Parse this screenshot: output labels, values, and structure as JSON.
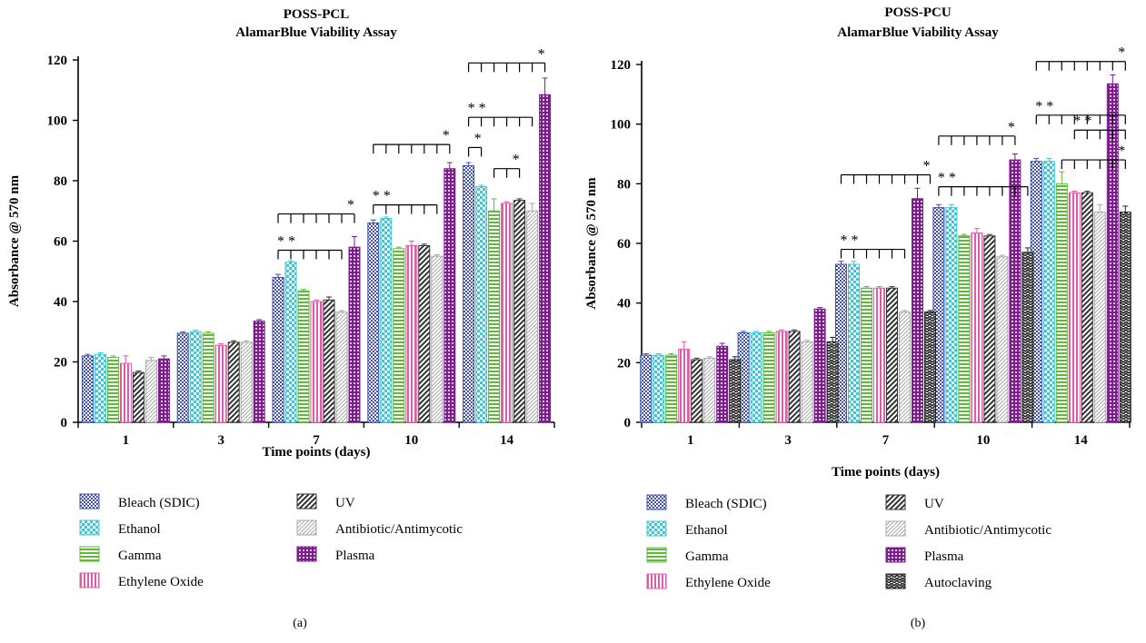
{
  "colors": {
    "Bleach (SDIC)": "#3f51a8",
    "Ethanol": "#3fc6d6",
    "Gamma": "#5fb83a",
    "Ethylene Oxide": "#e05aa8",
    "UV": "#333333",
    "Antibiotic/Antimycotic": "#a8a8a8",
    "Plasma": "#7a1e8c",
    "Autoclaving": "#222222"
  },
  "patterns": {
    "Bleach (SDIC)": "checker-small",
    "Ethanol": "checker",
    "Gamma": "hstripe",
    "Ethylene Oxide": "vstripe",
    "UV": "diag",
    "Antibiotic/Antimycotic": "diag-fine",
    "Plasma": "grid",
    "Autoclaving": "zigzag"
  },
  "chart_data": [
    {
      "id": "a",
      "type": "bar",
      "caption": "(a)",
      "title": [
        "POSS-PCL",
        "AlamarBlue Viability Assay"
      ],
      "xlabel": "Time points (days)",
      "ylabel": "Absorbance @ 570 nm",
      "ylim": [
        0,
        120
      ],
      "yticks": [
        0,
        20,
        40,
        60,
        80,
        100,
        120
      ],
      "categories": [
        "1",
        "3",
        "7",
        "10",
        "14"
      ],
      "series": [
        {
          "name": "Bleach (SDIC)",
          "values": [
            22,
            29.5,
            48,
            66,
            85
          ],
          "errors": [
            0.5,
            0.5,
            1,
            1,
            1
          ]
        },
        {
          "name": "Ethanol",
          "values": [
            22.5,
            30,
            53,
            67.5,
            78
          ],
          "errors": [
            0.5,
            0.5,
            0.5,
            0.5,
            0.5
          ]
        },
        {
          "name": "Gamma",
          "values": [
            21.5,
            29.5,
            43.5,
            57.5,
            70
          ],
          "errors": [
            0.5,
            0.5,
            0.5,
            0.5,
            4
          ]
        },
        {
          "name": "Ethylene Oxide",
          "values": [
            19.5,
            25.5,
            40,
            58.5,
            72.5
          ],
          "errors": [
            2.5,
            0.5,
            0.5,
            1.5,
            0.5
          ]
        },
        {
          "name": "UV",
          "values": [
            16.5,
            26.5,
            40.5,
            58.5,
            73.5
          ],
          "errors": [
            0.5,
            0.5,
            1,
            0.5,
            0.5
          ]
        },
        {
          "name": "Antibiotic/Antimycotic",
          "values": [
            20.5,
            26.5,
            36.5,
            55,
            70
          ],
          "errors": [
            1,
            0.5,
            0.5,
            0.5,
            2.5
          ]
        },
        {
          "name": "Plasma",
          "values": [
            21,
            33.5,
            58,
            84,
            108.5
          ],
          "errors": [
            1,
            0.5,
            3.5,
            2,
            5.5
          ]
        }
      ],
      "annotations": [
        {
          "cat": 2,
          "from": 0,
          "to": 6,
          "y": 69,
          "label": "*"
        },
        {
          "cat": 2,
          "from": 0,
          "to": 5,
          "y": 57,
          "label": "* *"
        },
        {
          "cat": 3,
          "from": 0,
          "to": 6,
          "y": 92,
          "label": "*"
        },
        {
          "cat": 3,
          "from": 0,
          "to": 5,
          "y": 72,
          "label": "* *"
        },
        {
          "cat": 4,
          "from": 0,
          "to": 6,
          "y": 119,
          "label": "*"
        },
        {
          "cat": 4,
          "from": 0,
          "to": 5,
          "y": 101,
          "label": "* *"
        },
        {
          "cat": 4,
          "from": 0,
          "to": 1,
          "y": 91,
          "label": "*"
        },
        {
          "cat": 4,
          "from": 2,
          "to": 4,
          "y": 84,
          "label": "*"
        }
      ],
      "legend": {
        "col1": [
          "Bleach (SDIC)",
          "Ethanol",
          "Gamma",
          "Ethylene Oxide"
        ],
        "col2": [
          "UV",
          "Antibiotic/Antimycotic",
          "Plasma"
        ]
      }
    },
    {
      "id": "b",
      "type": "bar",
      "caption": "(b)",
      "title": [
        "POSS-PCU",
        "AlamarBlue Viability Assay"
      ],
      "xlabel": "Time points (days)",
      "ylabel": "Absorbance @ 570 nm",
      "ylim": [
        0,
        120
      ],
      "yticks": [
        0,
        20,
        40,
        60,
        80,
        100,
        120
      ],
      "categories": [
        "1",
        "3",
        "7",
        "10",
        "14"
      ],
      "series": [
        {
          "name": "Bleach (SDIC)",
          "values": [
            22.5,
            30,
            53,
            72,
            87.5
          ],
          "errors": [
            0.5,
            0.5,
            1,
            1,
            1
          ]
        },
        {
          "name": "Ethanol",
          "values": [
            22.5,
            30,
            53,
            72,
            87.5
          ],
          "errors": [
            0.5,
            0.5,
            1,
            1,
            1
          ]
        },
        {
          "name": "Gamma",
          "values": [
            22.5,
            30,
            45,
            62.5,
            80
          ],
          "errors": [
            0.5,
            0.5,
            0.5,
            0.5,
            4
          ]
        },
        {
          "name": "Ethylene Oxide",
          "values": [
            24.5,
            30.5,
            45,
            63.5,
            77
          ],
          "errors": [
            2.5,
            0.5,
            0.5,
            1.5,
            0.5
          ]
        },
        {
          "name": "UV",
          "values": [
            21,
            30.5,
            45,
            62.5,
            77
          ],
          "errors": [
            0.5,
            0.5,
            0.5,
            0.5,
            0.5
          ]
        },
        {
          "name": "Antibiotic/Antimycotic",
          "values": [
            21.5,
            27,
            37,
            55.5,
            70.5
          ],
          "errors": [
            0.5,
            0.5,
            0.5,
            0.5,
            2.5
          ]
        },
        {
          "name": "Plasma",
          "values": [
            25.5,
            38,
            75,
            88,
            113.5
          ],
          "errors": [
            1,
            0.5,
            3.5,
            2,
            3
          ]
        },
        {
          "name": "Autoclaving",
          "values": [
            21,
            27,
            37,
            57,
            70.5
          ],
          "errors": [
            1,
            1.5,
            0.5,
            1.5,
            2
          ]
        }
      ],
      "annotations": [
        {
          "cat": 2,
          "from": 0,
          "to": 7,
          "y": 83,
          "label": "*"
        },
        {
          "cat": 2,
          "from": 0,
          "to": 5,
          "y": 58,
          "label": "* *"
        },
        {
          "cat": 3,
          "from": 0,
          "to": 6,
          "y": 96,
          "label": "*"
        },
        {
          "cat": 3,
          "from": 0,
          "to": 7,
          "y": 79,
          "label": "* *"
        },
        {
          "cat": 4,
          "from": 0,
          "to": 7,
          "y": 121,
          "label": "*"
        },
        {
          "cat": 4,
          "from": 0,
          "to": 7,
          "y": 103,
          "label": "* *"
        },
        {
          "cat": 4,
          "from": 3,
          "to": 7,
          "y": 98,
          "label": "* *"
        },
        {
          "cat": 4,
          "from": 2,
          "to": 7,
          "y": 88,
          "label": "*"
        }
      ],
      "legend": {
        "col1": [
          "Bleach (SDIC)",
          "Ethanol",
          "Gamma",
          "Ethylene Oxide"
        ],
        "col2": [
          "UV",
          "Antibiotic/Antimycotic",
          "Plasma",
          "Autoclaving"
        ]
      }
    }
  ]
}
